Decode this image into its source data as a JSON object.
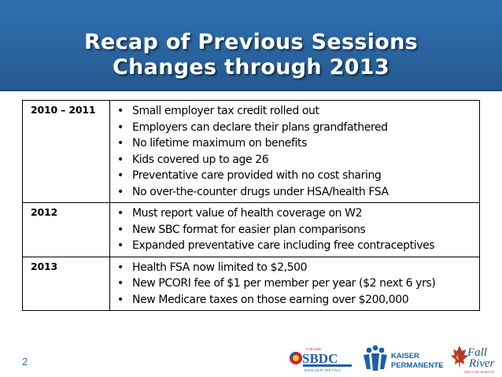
{
  "title": {
    "line1": "Recap of Previous Sessions",
    "line2": "Changes through 2013"
  },
  "rows": [
    {
      "year": "2010 – 2011",
      "items": [
        "Small employer tax credit rolled out",
        "Employers can declare their plans grandfathered",
        "No lifetime maximum on benefits",
        "Kids covered up to age 26",
        "Preventative care provided with no cost sharing",
        "No over-the-counter drugs under HSA/health FSA"
      ]
    },
    {
      "year": "2012",
      "items": [
        "Must report value of health coverage on W2",
        "New SBC format for easier plan comparisons",
        "Expanded preventative care including free contraceptives"
      ]
    },
    {
      "year": "2013",
      "items": [
        "Health FSA now limited to $2,500",
        "New  PCORI fee of $1 per member per year ($2 next 6 yrs)",
        "New Medicare taxes on those earning over $200,000"
      ]
    }
  ],
  "page_number": "2",
  "logos": {
    "sbdc": {
      "brand": "SBDC",
      "small_text": "Colorado",
      "tagline": "DENVER METRO"
    },
    "kaiser": {
      "line1": "KAISER",
      "line2": "PERMANENTE",
      "mark": "®"
    },
    "fall_river": {
      "line1": "Fall",
      "line2": "River",
      "tagline": "EMPLOYEE BENEFITS"
    }
  },
  "colors": {
    "header_blue": "#2a649f",
    "page_number": "#2f6fae",
    "sbdc_blue": "#1f5fa6",
    "kaiser_blue": "#1b5fa8",
    "fall_river_red": "#b5392b"
  }
}
